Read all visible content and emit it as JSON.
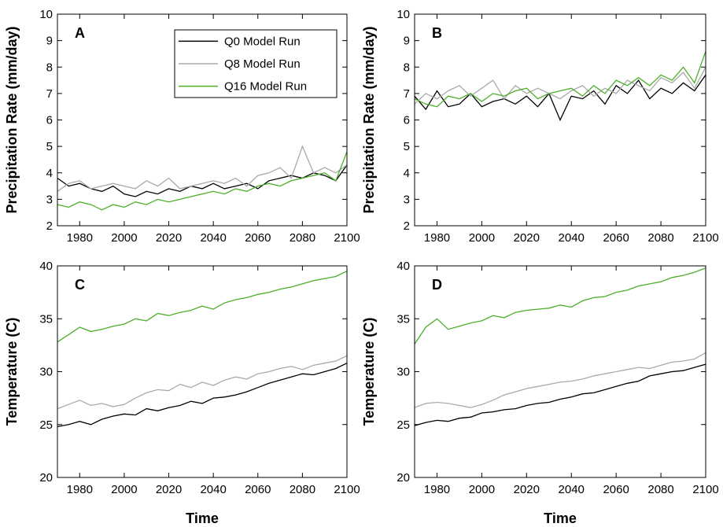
{
  "chart_data": [
    {
      "type": "line",
      "label": "A",
      "ylabel": "Precipitation Rate (mm/day)",
      "legend": "upper right",
      "x": [
        1970,
        1975,
        1980,
        1985,
        1990,
        1995,
        2000,
        2005,
        2010,
        2015,
        2020,
        2025,
        2030,
        2035,
        2040,
        2045,
        2050,
        2055,
        2060,
        2065,
        2070,
        2075,
        2080,
        2085,
        2090,
        2095,
        2100
      ],
      "xlim": [
        1970,
        2100
      ],
      "xticks": [
        1980,
        2000,
        2020,
        2040,
        2060,
        2080,
        2100
      ],
      "ylim": [
        2,
        10
      ],
      "yticks": [
        2,
        3,
        4,
        5,
        6,
        7,
        8,
        9,
        10
      ],
      "series": [
        {
          "name": "Q0 Model Run",
          "color": "#000000",
          "values": [
            3.8,
            3.5,
            3.6,
            3.4,
            3.3,
            3.5,
            3.2,
            3.1,
            3.3,
            3.2,
            3.4,
            3.3,
            3.5,
            3.4,
            3.6,
            3.4,
            3.5,
            3.6,
            3.4,
            3.7,
            3.8,
            3.9,
            3.8,
            4.0,
            3.9,
            3.7,
            4.3
          ]
        },
        {
          "name": "Q8 Model Run",
          "color": "#aaaaaa",
          "values": [
            3.3,
            3.6,
            3.7,
            3.4,
            3.5,
            3.6,
            3.5,
            3.4,
            3.7,
            3.5,
            3.8,
            3.4,
            3.5,
            3.6,
            3.7,
            3.6,
            3.8,
            3.5,
            3.9,
            4.0,
            4.2,
            3.8,
            5.0,
            4.0,
            4.2,
            4.0,
            4.3
          ]
        },
        {
          "name": "Q16 Model Run",
          "color": "#4caf2a",
          "values": [
            2.8,
            2.7,
            2.9,
            2.8,
            2.6,
            2.8,
            2.7,
            2.9,
            2.8,
            3.0,
            2.9,
            3.0,
            3.1,
            3.2,
            3.3,
            3.2,
            3.4,
            3.3,
            3.5,
            3.6,
            3.5,
            3.7,
            3.8,
            3.9,
            4.0,
            3.7,
            4.8
          ]
        }
      ]
    },
    {
      "type": "line",
      "label": "B",
      "ylabel": "Precipitation Rate (mm/day)",
      "x": [
        1970,
        1975,
        1980,
        1985,
        1990,
        1995,
        2000,
        2005,
        2010,
        2015,
        2020,
        2025,
        2030,
        2035,
        2040,
        2045,
        2050,
        2055,
        2060,
        2065,
        2070,
        2075,
        2080,
        2085,
        2090,
        2095,
        2100
      ],
      "xlim": [
        1970,
        2100
      ],
      "xticks": [
        1980,
        2000,
        2020,
        2040,
        2060,
        2080,
        2100
      ],
      "ylim": [
        2,
        10
      ],
      "yticks": [
        2,
        3,
        4,
        5,
        6,
        7,
        8,
        9,
        10
      ],
      "series": [
        {
          "color": "#000000",
          "values": [
            6.9,
            6.4,
            7.1,
            6.5,
            6.6,
            7.0,
            6.5,
            6.7,
            6.8,
            6.6,
            6.9,
            6.5,
            7.0,
            6.0,
            6.9,
            6.8,
            7.1,
            6.6,
            7.3,
            7.0,
            7.5,
            6.8,
            7.2,
            7.0,
            7.4,
            7.1,
            7.7
          ]
        },
        {
          "color": "#aaaaaa",
          "values": [
            6.6,
            7.0,
            6.8,
            7.1,
            7.3,
            6.9,
            7.2,
            7.5,
            6.8,
            7.3,
            7.0,
            7.2,
            7.0,
            6.8,
            7.1,
            7.3,
            6.9,
            7.2,
            7.0,
            7.5,
            7.3,
            7.1,
            7.6,
            7.4,
            7.8,
            7.2,
            8.0
          ]
        },
        {
          "color": "#4caf2a",
          "values": [
            6.8,
            6.6,
            6.5,
            6.9,
            6.8,
            7.0,
            6.7,
            7.0,
            6.9,
            7.1,
            7.2,
            6.8,
            7.0,
            7.1,
            7.2,
            6.9,
            7.3,
            7.0,
            7.5,
            7.3,
            7.6,
            7.3,
            7.7,
            7.5,
            8.0,
            7.4,
            8.6
          ]
        }
      ]
    },
    {
      "type": "line",
      "label": "C",
      "ylabel": "Temperature (C)",
      "xlabel": "Time",
      "x": [
        1970,
        1975,
        1980,
        1985,
        1990,
        1995,
        2000,
        2005,
        2010,
        2015,
        2020,
        2025,
        2030,
        2035,
        2040,
        2045,
        2050,
        2055,
        2060,
        2065,
        2070,
        2075,
        2080,
        2085,
        2090,
        2095,
        2100
      ],
      "xlim": [
        1970,
        2100
      ],
      "xticks": [
        1980,
        2000,
        2020,
        2040,
        2060,
        2080,
        2100
      ],
      "ylim": [
        20,
        40
      ],
      "yticks": [
        20,
        25,
        30,
        35,
        40
      ],
      "series": [
        {
          "color": "#000000",
          "values": [
            24.8,
            25.0,
            25.3,
            25.0,
            25.5,
            25.8,
            26.0,
            25.9,
            26.5,
            26.3,
            26.6,
            26.8,
            27.2,
            27.0,
            27.5,
            27.6,
            27.8,
            28.1,
            28.5,
            28.9,
            29.2,
            29.5,
            29.8,
            29.7,
            30.0,
            30.3,
            30.8
          ]
        },
        {
          "color": "#aaaaaa",
          "values": [
            26.5,
            26.9,
            27.3,
            26.8,
            27.0,
            26.7,
            26.9,
            27.5,
            28.0,
            28.3,
            28.2,
            28.8,
            28.5,
            29.0,
            28.7,
            29.2,
            29.5,
            29.3,
            29.8,
            30.0,
            30.3,
            30.5,
            30.2,
            30.6,
            30.8,
            31.0,
            31.5
          ]
        },
        {
          "color": "#4caf2a",
          "values": [
            32.8,
            33.5,
            34.2,
            33.8,
            34.0,
            34.3,
            34.5,
            35.0,
            34.8,
            35.5,
            35.3,
            35.6,
            35.8,
            36.2,
            35.9,
            36.5,
            36.8,
            37.0,
            37.3,
            37.5,
            37.8,
            38.0,
            38.3,
            38.6,
            38.8,
            39.0,
            39.5
          ]
        }
      ]
    },
    {
      "type": "line",
      "label": "D",
      "ylabel": "Temperature (C)",
      "xlabel": "Time",
      "x": [
        1970,
        1975,
        1980,
        1985,
        1990,
        1995,
        2000,
        2005,
        2010,
        2015,
        2020,
        2025,
        2030,
        2035,
        2040,
        2045,
        2050,
        2055,
        2060,
        2065,
        2070,
        2075,
        2080,
        2085,
        2090,
        2095,
        2100
      ],
      "xlim": [
        1970,
        2100
      ],
      "xticks": [
        1980,
        2000,
        2020,
        2040,
        2060,
        2080,
        2100
      ],
      "ylim": [
        20,
        40
      ],
      "yticks": [
        20,
        25,
        30,
        35,
        40
      ],
      "series": [
        {
          "color": "#000000",
          "values": [
            24.9,
            25.2,
            25.4,
            25.3,
            25.6,
            25.7,
            26.1,
            26.2,
            26.4,
            26.5,
            26.8,
            27.0,
            27.1,
            27.4,
            27.6,
            27.9,
            28.0,
            28.3,
            28.6,
            28.9,
            29.1,
            29.6,
            29.8,
            30.0,
            30.1,
            30.4,
            30.7
          ]
        },
        {
          "color": "#aaaaaa",
          "values": [
            26.6,
            27.0,
            27.1,
            27.0,
            26.8,
            26.6,
            26.9,
            27.3,
            27.8,
            28.1,
            28.4,
            28.6,
            28.8,
            29.0,
            29.1,
            29.3,
            29.6,
            29.8,
            30.0,
            30.2,
            30.4,
            30.3,
            30.6,
            30.9,
            31.0,
            31.2,
            31.8
          ]
        },
        {
          "color": "#4caf2a",
          "values": [
            32.6,
            34.2,
            35.0,
            34.0,
            34.3,
            34.6,
            34.8,
            35.3,
            35.1,
            35.6,
            35.8,
            35.9,
            36.0,
            36.3,
            36.1,
            36.7,
            37.0,
            37.1,
            37.5,
            37.7,
            38.1,
            38.3,
            38.5,
            38.9,
            39.1,
            39.4,
            39.8
          ]
        }
      ]
    }
  ]
}
